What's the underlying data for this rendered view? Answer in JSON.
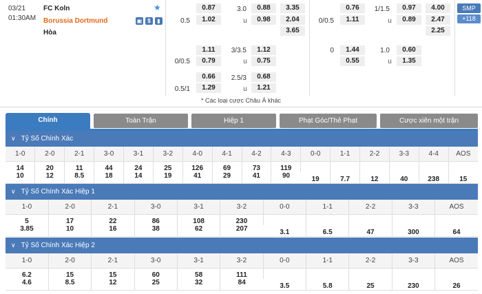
{
  "match": {
    "date": "03/21",
    "time": "01:30AM",
    "home": "FC Koln",
    "away": "Borussia Dortmund",
    "draw": "Hòa",
    "icons": [
      "star-icon",
      "tv-icon",
      "money-icon",
      "stats-icon"
    ]
  },
  "odds_full": {
    "ah_main": {
      "h_top": "",
      "h_bottom": "0.5",
      "top": "0.87",
      "bottom": "1.02"
    },
    "ou_main": {
      "line": "3.0",
      "over_label": "",
      "under_label": "u",
      "over": "0.88",
      "under": "0.98"
    },
    "x12": {
      "home": "3.35",
      "away": "2.04",
      "draw": "3.65"
    },
    "ah_alt1": {
      "h_bottom": "0/0.5",
      "top": "1.11",
      "bottom": "0.79"
    },
    "ou_alt1": {
      "line": "3/3.5",
      "under_label": "u",
      "over": "1.12",
      "under": "0.75"
    },
    "ah_alt2": {
      "h_bottom": "0.5/1",
      "top": "0.66",
      "bottom": "1.29"
    },
    "ou_alt2": {
      "line": "2.5/3",
      "under_label": "u",
      "over": "0.68",
      "under": "1.21"
    }
  },
  "odds_half": {
    "ah_main": {
      "h_bottom": "0/0.5",
      "top": "0.76",
      "bottom": "1.11"
    },
    "ou_main": {
      "line": "1/1.5",
      "under_label": "u",
      "over": "0.97",
      "under": "0.89"
    },
    "x12": {
      "home": "4.00",
      "away": "2.47",
      "draw": "2.25"
    },
    "ah_alt1": {
      "h_top": "0",
      "top": "1.44",
      "bottom": "0.55"
    },
    "ou_alt1": {
      "line": "1.0",
      "under_label": "u",
      "over": "0.60",
      "under": "1.35"
    }
  },
  "side": {
    "smp": "SMP",
    "count": "+118"
  },
  "note": "* Các loại cược Châu Á khác",
  "tabs": [
    {
      "label": "Chính",
      "active": true
    },
    {
      "label": "Toàn Trận"
    },
    {
      "label": "Hiệp 1"
    },
    {
      "label": "Phạt Góc/Thẻ Phạt"
    },
    {
      "label": "Cược xiên một trận"
    }
  ],
  "sections": [
    {
      "title": "Tỷ Số Chính Xác",
      "labels": [
        "1-0",
        "2-0",
        "2-1",
        "3-0",
        "3-1",
        "3-2",
        "4-0",
        "4-1",
        "4-2",
        "4-3",
        "0-0",
        "1-1",
        "2-2",
        "3-3",
        "4-4",
        "AOS"
      ],
      "top": [
        "14",
        "20",
        "11",
        "44",
        "24",
        "25",
        "126",
        "69",
        "73",
        "119"
      ],
      "bottom": [
        "10",
        "12",
        "8.5",
        "18",
        "14",
        "19",
        "41",
        "29",
        "41",
        "90"
      ],
      "single": [
        "19",
        "7.7",
        "12",
        "40",
        "238",
        "15"
      ]
    },
    {
      "title": "Tỷ Số Chính Xác Hiệp 1",
      "labels": [
        "1-0",
        "2-0",
        "2-1",
        "3-0",
        "3-1",
        "3-2",
        "0-0",
        "1-1",
        "2-2",
        "3-3",
        "AOS"
      ],
      "top": [
        "5",
        "17",
        "22",
        "86",
        "108",
        "230"
      ],
      "bottom": [
        "3.85",
        "10",
        "16",
        "38",
        "62",
        "207"
      ],
      "single": [
        "3.1",
        "6.5",
        "47",
        "300",
        "64"
      ]
    },
    {
      "title": "Tỷ Số Chính Xác Hiệp 2",
      "labels": [
        "1-0",
        "2-0",
        "2-1",
        "3-0",
        "3-1",
        "3-2",
        "0-0",
        "1-1",
        "2-2",
        "3-3",
        "AOS"
      ],
      "top": [
        "6.2",
        "15",
        "15",
        "60",
        "58",
        "111"
      ],
      "bottom": [
        "4.6",
        "8.5",
        "12",
        "25",
        "32",
        "84"
      ],
      "single": [
        "3.5",
        "5.8",
        "25",
        "230",
        "26"
      ]
    }
  ]
}
